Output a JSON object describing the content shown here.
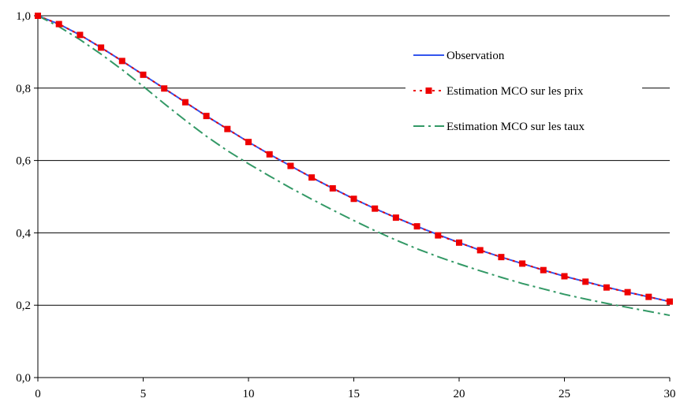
{
  "chart_data": {
    "type": "line",
    "title": "",
    "xlabel": "",
    "ylabel": "",
    "xlim": [
      0,
      30
    ],
    "ylim": [
      0,
      1
    ],
    "x_ticks": [
      "0",
      "5",
      "10",
      "15",
      "20",
      "25",
      "30"
    ],
    "y_ticks": [
      "0,0",
      "0,2",
      "0,4",
      "0,6",
      "0,8",
      "1,0"
    ],
    "grid": "horizontal",
    "legend_position": "top-right",
    "x": [
      0,
      1,
      2,
      3,
      4,
      5,
      6,
      7,
      8,
      9,
      10,
      11,
      12,
      13,
      14,
      15,
      16,
      17,
      18,
      19,
      20,
      21,
      22,
      23,
      24,
      25,
      26,
      27,
      28,
      29,
      30
    ],
    "series": [
      {
        "name": "Observation",
        "color": "#3355ee",
        "style": "solid",
        "values": [
          1.0,
          0.977,
          0.947,
          0.912,
          0.875,
          0.837,
          0.799,
          0.761,
          0.723,
          0.687,
          0.651,
          0.617,
          0.585,
          0.553,
          0.523,
          0.494,
          0.467,
          0.442,
          0.418,
          0.395,
          0.373,
          0.352,
          0.333,
          0.315,
          0.297,
          0.28,
          0.265,
          0.25,
          0.236,
          0.223,
          0.21
        ]
      },
      {
        "name": "Estimation MCO sur les prix",
        "color": "#ee0000",
        "style": "dotted-square",
        "values": [
          1.0,
          0.977,
          0.947,
          0.912,
          0.875,
          0.837,
          0.799,
          0.761,
          0.723,
          0.687,
          0.651,
          0.617,
          0.585,
          0.553,
          0.523,
          0.494,
          0.467,
          0.442,
          0.418,
          0.393,
          0.373,
          0.352,
          0.333,
          0.315,
          0.297,
          0.28,
          0.265,
          0.249,
          0.236,
          0.223,
          0.21
        ]
      },
      {
        "name": "Estimation MCO sur les taux",
        "color": "#339966",
        "style": "dash-dot",
        "values": [
          1.0,
          0.97,
          0.934,
          0.894,
          0.851,
          0.805,
          0.757,
          0.711,
          0.667,
          0.627,
          0.591,
          0.557,
          0.524,
          0.493,
          0.463,
          0.434,
          0.406,
          0.38,
          0.356,
          0.334,
          0.314,
          0.295,
          0.277,
          0.26,
          0.245,
          0.23,
          0.217,
          0.205,
          0.194,
          0.183,
          0.172
        ]
      }
    ]
  }
}
